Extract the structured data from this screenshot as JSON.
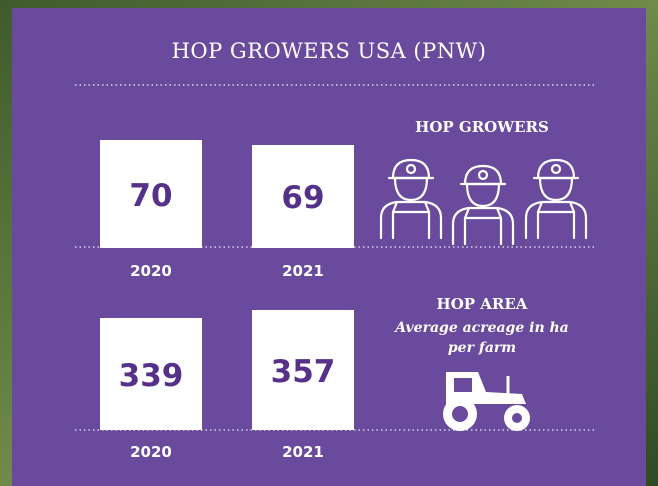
{
  "title": "HOP GROWERS USA (PNW)",
  "sections": [
    {
      "heading": "HOP GROWERS",
      "items": [
        {
          "value": "70",
          "year": "2020"
        },
        {
          "value": "69",
          "year": "2021"
        }
      ]
    },
    {
      "heading": "HOP AREA",
      "subheading_lines": [
        "Average acreage in ha",
        "per farm"
      ],
      "items": [
        {
          "value": "339",
          "year": "2020"
        },
        {
          "value": "357",
          "year": "2021"
        }
      ]
    }
  ]
}
